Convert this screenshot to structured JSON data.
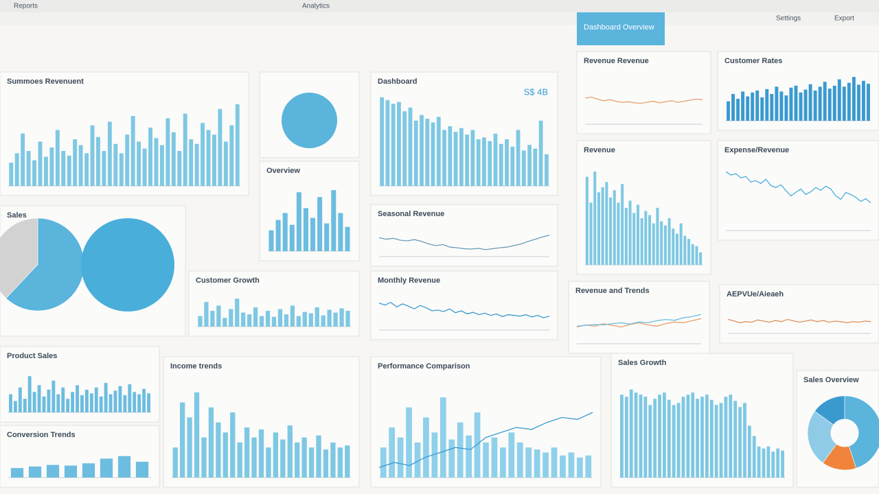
{
  "header": {
    "title": "Dashboard Overview",
    "nav": [
      "Reports",
      "Analytics",
      "Settings",
      "Export"
    ]
  },
  "panels": [
    {
      "title": "Summoes Revenuent",
      "chart": {
        "type": "bar",
        "color": "#7ec8e3",
        "ylim": [
          0,
          80
        ],
        "values": [
          20,
          28,
          45,
          30,
          22,
          38,
          25,
          33,
          48,
          30,
          26,
          40,
          35,
          28,
          52,
          42,
          30,
          55,
          36,
          28,
          44,
          60,
          38,
          32,
          50,
          41,
          35,
          58,
          46,
          30,
          62,
          40,
          36,
          54,
          48,
          44,
          66,
          38,
          52,
          70
        ]
      }
    },
    {
      "chart": {
        "type": "pie",
        "colors": [
          "#5ab4dc"
        ],
        "values": [
          100
        ]
      }
    },
    {
      "title": "Dashboard",
      "kpi": "S$ 4B",
      "chart": {
        "type": "bar",
        "color": "#7ec8e3",
        "ylim": [
          0,
          100
        ],
        "values": [
          95,
          92,
          88,
          90,
          80,
          84,
          70,
          76,
          72,
          68,
          74,
          60,
          64,
          58,
          62,
          55,
          60,
          50,
          52,
          48,
          56,
          45,
          50,
          42,
          60,
          38,
          44,
          40,
          70,
          34
        ]
      }
    },
    {
      "title": "Revenue Revenue",
      "chart": {
        "type": "line",
        "color": "#e8a06a",
        "ylim": [
          0,
          100
        ],
        "values": [
          50,
          52,
          48,
          45,
          47,
          44,
          42,
          43,
          41,
          40,
          42,
          44,
          41,
          43,
          45,
          42,
          44,
          46,
          48,
          47
        ]
      }
    },
    {
      "title": "Customer Rates",
      "chart": {
        "type": "bar",
        "color": "#3a9ad0",
        "ylim": [
          0,
          100
        ],
        "values": [
          40,
          55,
          45,
          60,
          50,
          58,
          62,
          48,
          65,
          55,
          70,
          60,
          52,
          68,
          72,
          58,
          64,
          75,
          62,
          70,
          80,
          66,
          72,
          85,
          70,
          78,
          90,
          74,
          82,
          76
        ]
      }
    },
    {
      "title": "Overview",
      "chart": {
        "type": "bar",
        "color": "#6cbde0",
        "ylim": [
          0,
          100
        ],
        "values": [
          30,
          45,
          55,
          38,
          85,
          62,
          48,
          78,
          40,
          88,
          55,
          35
        ]
      }
    },
    {
      "title": "Sales",
      "chart": {
        "type": "pie",
        "colors": [
          "#5ab4dc",
          "#d2d2d2"
        ],
        "values": [
          62,
          38
        ]
      }
    },
    {
      "chart": {
        "type": "pie",
        "colors": [
          "#4aaedb"
        ],
        "values": [
          100
        ]
      }
    },
    {
      "title": "Seasonal Revenue",
      "chart": {
        "type": "line",
        "color": "#6a9ab8",
        "ylim": [
          0,
          100
        ],
        "values": [
          60,
          55,
          58,
          52,
          50,
          54,
          48,
          40,
          35,
          38,
          30,
          28,
          25,
          24,
          26,
          22,
          25,
          28,
          30,
          35,
          40,
          48,
          55,
          62,
          68
        ]
      }
    },
    {
      "title": "Revenue",
      "chart": {
        "type": "bar",
        "color": "#7ec8e3",
        "ylim": [
          0,
          100
        ],
        "values": [
          85,
          60,
          90,
          70,
          75,
          80,
          65,
          72,
          60,
          78,
          55,
          62,
          50,
          58,
          45,
          52,
          48,
          40,
          55,
          42,
          38,
          45,
          35,
          30,
          40,
          28,
          25,
          20,
          18,
          12
        ]
      }
    },
    {
      "title": "Expense/Revenue",
      "chart": {
        "type": "line",
        "color": "#4aaedb",
        "ylim": [
          0,
          100
        ],
        "values": [
          85,
          80,
          82,
          76,
          78,
          70,
          72,
          68,
          74,
          65,
          62,
          66,
          58,
          50,
          55,
          60,
          52,
          56,
          62,
          58,
          64,
          60,
          50,
          45,
          55,
          52,
          48,
          42,
          46,
          40
        ]
      }
    },
    {
      "title": "Customer Growth",
      "chart": {
        "type": "bar",
        "color": "#7ec8e3",
        "ylim": [
          0,
          100
        ],
        "values": [
          30,
          70,
          45,
          60,
          25,
          50,
          80,
          40,
          35,
          55,
          30,
          45,
          28,
          50,
          35,
          60,
          30,
          42,
          38,
          55,
          32,
          48,
          40,
          52,
          45
        ]
      }
    },
    {
      "title": "Monthly Revenue",
      "chart": {
        "type": "line",
        "color": "#3a9ad0",
        "ylim": [
          0,
          100
        ],
        "values": [
          70,
          65,
          72,
          60,
          68,
          62,
          55,
          64,
          58,
          50,
          52,
          48,
          55,
          45,
          50,
          42,
          46,
          40,
          44,
          38,
          42,
          35,
          40,
          38,
          36,
          40,
          34,
          38,
          32,
          36
        ]
      }
    },
    {
      "title": "Revenue and Trends",
      "chart": {
        "type": "line",
        "ylim": [
          0,
          100
        ],
        "series": [
          {
            "color": "#e8a06a",
            "values": [
              40,
              45,
              42,
              48,
              44,
              40,
              46,
              50,
              45,
              42,
              48,
              52,
              50,
              55,
              60
            ]
          },
          {
            "color": "#6cbde0",
            "values": [
              42,
              44,
              46,
              45,
              48,
              50,
              47,
              52,
              50,
              55,
              58,
              56,
              62,
              65,
              70
            ]
          }
        ]
      }
    },
    {
      "title": "AEPVUe/Aieaeh",
      "chart": {
        "type": "line",
        "color": "#e0905a",
        "ylim": [
          0,
          100
        ],
        "values": [
          50,
          45,
          38,
          42,
          40,
          48,
          44,
          40,
          46,
          42,
          50,
          45,
          40,
          44,
          48,
          42,
          46,
          40,
          44,
          42,
          38,
          42,
          40,
          44,
          42
        ]
      }
    },
    {
      "title": "Product Sales",
      "chart": {
        "type": "bar",
        "color": "#6cbde0",
        "ylim": [
          0,
          100
        ],
        "values": [
          40,
          25,
          55,
          30,
          80,
          45,
          60,
          35,
          50,
          70,
          40,
          55,
          30,
          45,
          60,
          38,
          50,
          42,
          55,
          35,
          65,
          40,
          48,
          58,
          38,
          62,
          45,
          40,
          52,
          42
        ]
      }
    },
    {
      "title": "Conversion Trends",
      "chart": {
        "type": "bar",
        "color": "#6cbde0",
        "ylim": [
          0,
          100
        ],
        "values": [
          30,
          35,
          40,
          38,
          45,
          60,
          68,
          50
        ]
      }
    },
    {
      "title": "Income trends",
      "chart": {
        "type": "bar",
        "color": "#7ec8e3",
        "ylim": [
          0,
          100
        ],
        "values": [
          30,
          75,
          60,
          85,
          40,
          70,
          55,
          45,
          65,
          35,
          50,
          40,
          48,
          30,
          45,
          38,
          52,
          35,
          40,
          30,
          42,
          28,
          35,
          30,
          32
        ]
      }
    },
    {
      "title": "Performance Comparison",
      "chart": {
        "type": "combo",
        "color": "#8fd0ea",
        "line_color": "#3a9ad0",
        "ylim": [
          0,
          100
        ],
        "values": [
          30,
          50,
          40,
          70,
          35,
          60,
          45,
          80,
          38,
          55,
          42,
          65,
          35,
          40,
          30,
          45,
          35,
          30,
          28,
          25,
          30,
          22,
          25,
          20,
          22
        ],
        "line_values": [
          10,
          15,
          12,
          20,
          25,
          30,
          28,
          40,
          45,
          50,
          48,
          55,
          60,
          58,
          65
        ]
      }
    },
    {
      "title": "Sales Growth",
      "chart": {
        "type": "bar",
        "color": "#7ec8e3",
        "ylim": [
          0,
          100
        ],
        "values": [
          80,
          78,
          85,
          82,
          80,
          78,
          70,
          76,
          80,
          82,
          75,
          70,
          72,
          78,
          80,
          82,
          76,
          78,
          80,
          75,
          70,
          72,
          78,
          80,
          74,
          68,
          72,
          50,
          40,
          30,
          28,
          30,
          25,
          28,
          26
        ]
      }
    },
    {
      "title": "Sales Overview",
      "chart": {
        "type": "donut",
        "colors": [
          "#5ab4dc",
          "#f0843c",
          "#8fcbe6",
          "#3a9ad0"
        ],
        "values": [
          45,
          15,
          25,
          15
        ]
      }
    }
  ]
}
